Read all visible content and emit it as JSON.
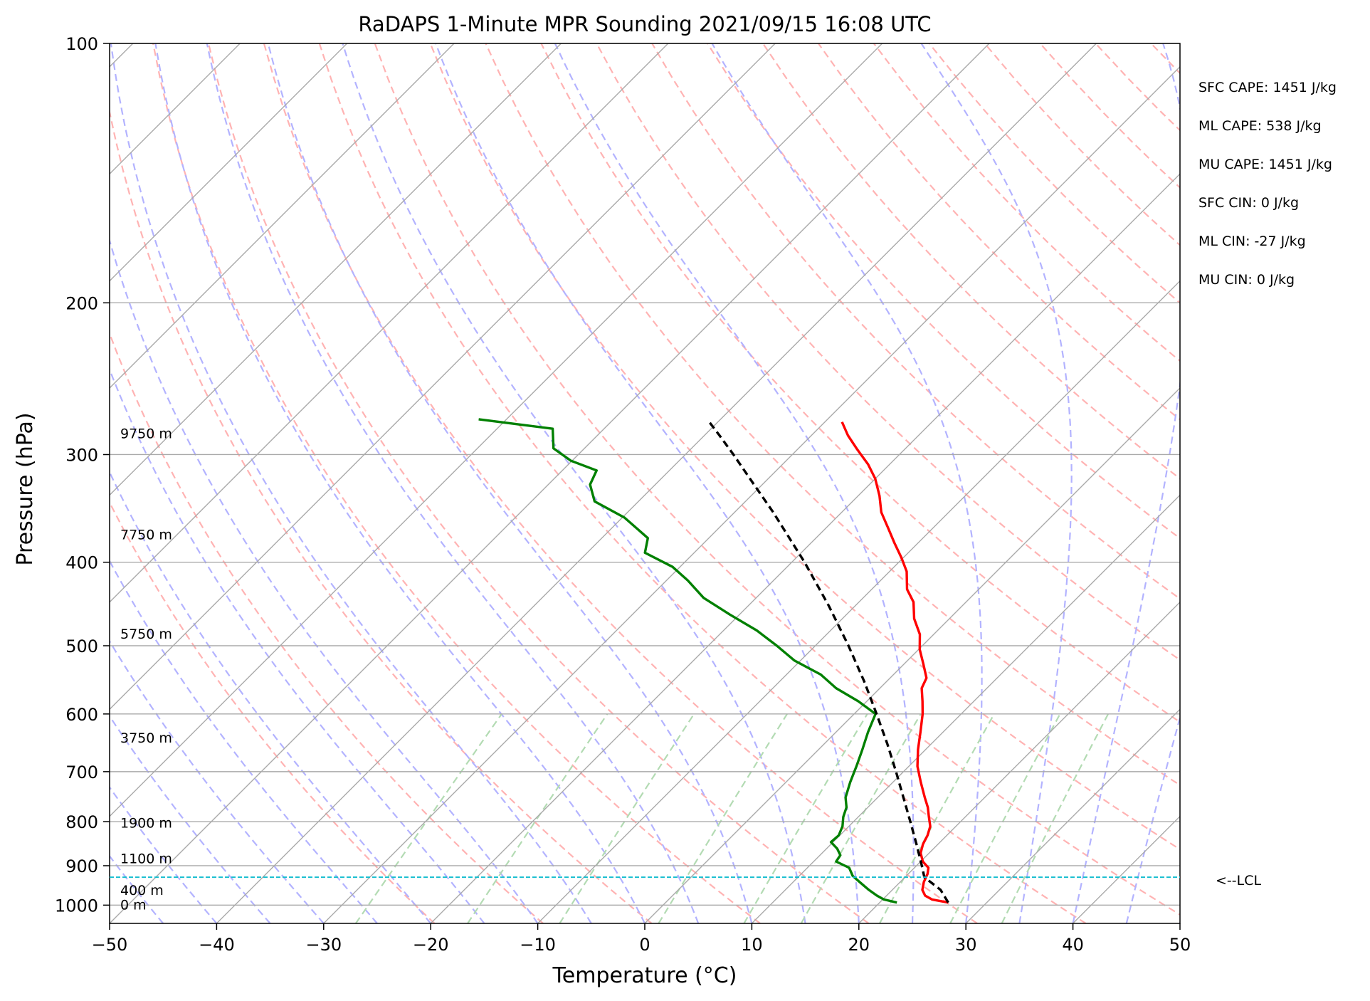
{
  "chart_data": {
    "type": "line",
    "title": "RaDAPS 1-Minute MPR Sounding 2021/09/15 16:08 UTC",
    "xlabel": "Temperature (°C)",
    "ylabel": "Pressure (hPa)",
    "xlim": [
      -50,
      50
    ],
    "ylim": [
      1050,
      100
    ],
    "y_scale": "log",
    "skew_t": true,
    "x_ticks": [
      -50,
      -40,
      -30,
      -20,
      -10,
      0,
      10,
      20,
      30,
      40,
      50
    ],
    "x_tick_labels": [
      "−50",
      "−40",
      "−30",
      "−20",
      "−10",
      "0",
      "10",
      "20",
      "30",
      "40",
      "50"
    ],
    "y_ticks": [
      100,
      200,
      300,
      400,
      500,
      600,
      700,
      800,
      900,
      1000
    ],
    "y_tick_labels": [
      "100",
      "200",
      "300",
      "400",
      "500",
      "600",
      "700",
      "800",
      "900",
      "1000"
    ],
    "grid": true,
    "series": [
      {
        "role": "temperature",
        "color": "#ff0000",
        "points": [
          [
            993,
            26.4
          ],
          [
            985,
            24.6
          ],
          [
            975,
            23.6
          ],
          [
            960,
            22.8
          ],
          [
            940,
            22.2
          ],
          [
            920,
            21.8
          ],
          [
            905,
            21.3
          ],
          [
            890,
            20.2
          ],
          [
            870,
            19.2
          ],
          [
            850,
            18.6
          ],
          [
            830,
            18.2
          ],
          [
            810,
            17.6
          ],
          [
            790,
            16.6
          ],
          [
            770,
            15.6
          ],
          [
            750,
            14.4
          ],
          [
            720,
            12.6
          ],
          [
            690,
            10.8
          ],
          [
            660,
            9.3
          ],
          [
            630,
            7.9
          ],
          [
            600,
            6.4
          ],
          [
            580,
            5.2
          ],
          [
            560,
            3.9
          ],
          [
            545,
            3.4
          ],
          [
            525,
            1.8
          ],
          [
            505,
            0.1
          ],
          [
            485,
            -1.3
          ],
          [
            465,
            -3.3
          ],
          [
            445,
            -4.9
          ],
          [
            430,
            -6.7
          ],
          [
            410,
            -8.4
          ],
          [
            395,
            -10.2
          ],
          [
            380,
            -12.2
          ],
          [
            365,
            -14.2
          ],
          [
            350,
            -16.3
          ],
          [
            335,
            -18.0
          ],
          [
            320,
            -20.0
          ],
          [
            308,
            -22.0
          ],
          [
            296,
            -24.4
          ],
          [
            285,
            -26.6
          ],
          [
            275,
            -28.4
          ]
        ]
      },
      {
        "role": "dewpoint",
        "color": "#008000",
        "points": [
          [
            993,
            21.6
          ],
          [
            985,
            20.1
          ],
          [
            975,
            19.1
          ],
          [
            960,
            17.8
          ],
          [
            940,
            16.2
          ],
          [
            925,
            15.0
          ],
          [
            905,
            13.9
          ],
          [
            890,
            12.1
          ],
          [
            875,
            11.9
          ],
          [
            860,
            11.0
          ],
          [
            845,
            9.8
          ],
          [
            830,
            9.9
          ],
          [
            810,
            9.4
          ],
          [
            790,
            8.6
          ],
          [
            770,
            8.0
          ],
          [
            750,
            7.0
          ],
          [
            720,
            6.0
          ],
          [
            690,
            5.1
          ],
          [
            660,
            4.1
          ],
          [
            630,
            3.0
          ],
          [
            600,
            2.0
          ],
          [
            580,
            -0.8
          ],
          [
            560,
            -4.1
          ],
          [
            540,
            -6.8
          ],
          [
            520,
            -10.6
          ],
          [
            500,
            -13.6
          ],
          [
            480,
            -16.9
          ],
          [
            460,
            -20.9
          ],
          [
            440,
            -24.9
          ],
          [
            420,
            -28.0
          ],
          [
            405,
            -30.7
          ],
          [
            390,
            -34.6
          ],
          [
            375,
            -35.7
          ],
          [
            355,
            -39.8
          ],
          [
            340,
            -44.1
          ],
          [
            325,
            -46.1
          ],
          [
            313,
            -46.8
          ],
          [
            305,
            -50.1
          ],
          [
            295,
            -52.9
          ],
          [
            280,
            -54.8
          ],
          [
            273,
            -62.6
          ]
        ]
      },
      {
        "role": "parcel",
        "color": "#000000",
        "dashed": true,
        "points": [
          [
            993,
            26.4
          ],
          [
            960,
            24.5
          ],
          [
            928,
            21.8
          ],
          [
            900,
            20.5
          ],
          [
            850,
            18.0
          ],
          [
            800,
            15.3
          ],
          [
            750,
            12.4
          ],
          [
            700,
            9.3
          ],
          [
            650,
            5.9
          ],
          [
            600,
            2.1
          ],
          [
            550,
            -2.1
          ],
          [
            500,
            -6.9
          ],
          [
            450,
            -12.4
          ],
          [
            400,
            -18.8
          ],
          [
            350,
            -26.4
          ],
          [
            320,
            -31.7
          ],
          [
            300,
            -35.5
          ],
          [
            285,
            -38.6
          ],
          [
            275,
            -40.8
          ]
        ]
      }
    ],
    "lcl_hpa": 928,
    "lcl_label": "<--LCL",
    "height_labels": [
      {
        "p": 1000,
        "text": "0 m"
      },
      {
        "p": 962,
        "text": "400 m"
      },
      {
        "p": 884,
        "text": "1100 m"
      },
      {
        "p": 804,
        "text": "1900 m"
      },
      {
        "p": 640,
        "text": "3750 m"
      },
      {
        "p": 485,
        "text": "5750 m"
      },
      {
        "p": 372,
        "text": "7750 m"
      },
      {
        "p": 284,
        "text": "9750 m"
      }
    ],
    "indices": [
      "SFC CAPE: 1451 J/kg",
      "ML CAPE: 538 J/kg",
      "MU CAPE: 1451 J/kg",
      "SFC CIN: 0 J/kg",
      "ML CIN: -27 J/kg",
      "MU CIN: 0 J/kg"
    ],
    "colors": {
      "isotherm": "#aaaaaa",
      "dry_adiabat": "#ffb3b3",
      "moist_adiabat": "#b3b3ff",
      "mixing_ratio": "#b3dbb3",
      "lcl_line": "#17becf"
    }
  }
}
